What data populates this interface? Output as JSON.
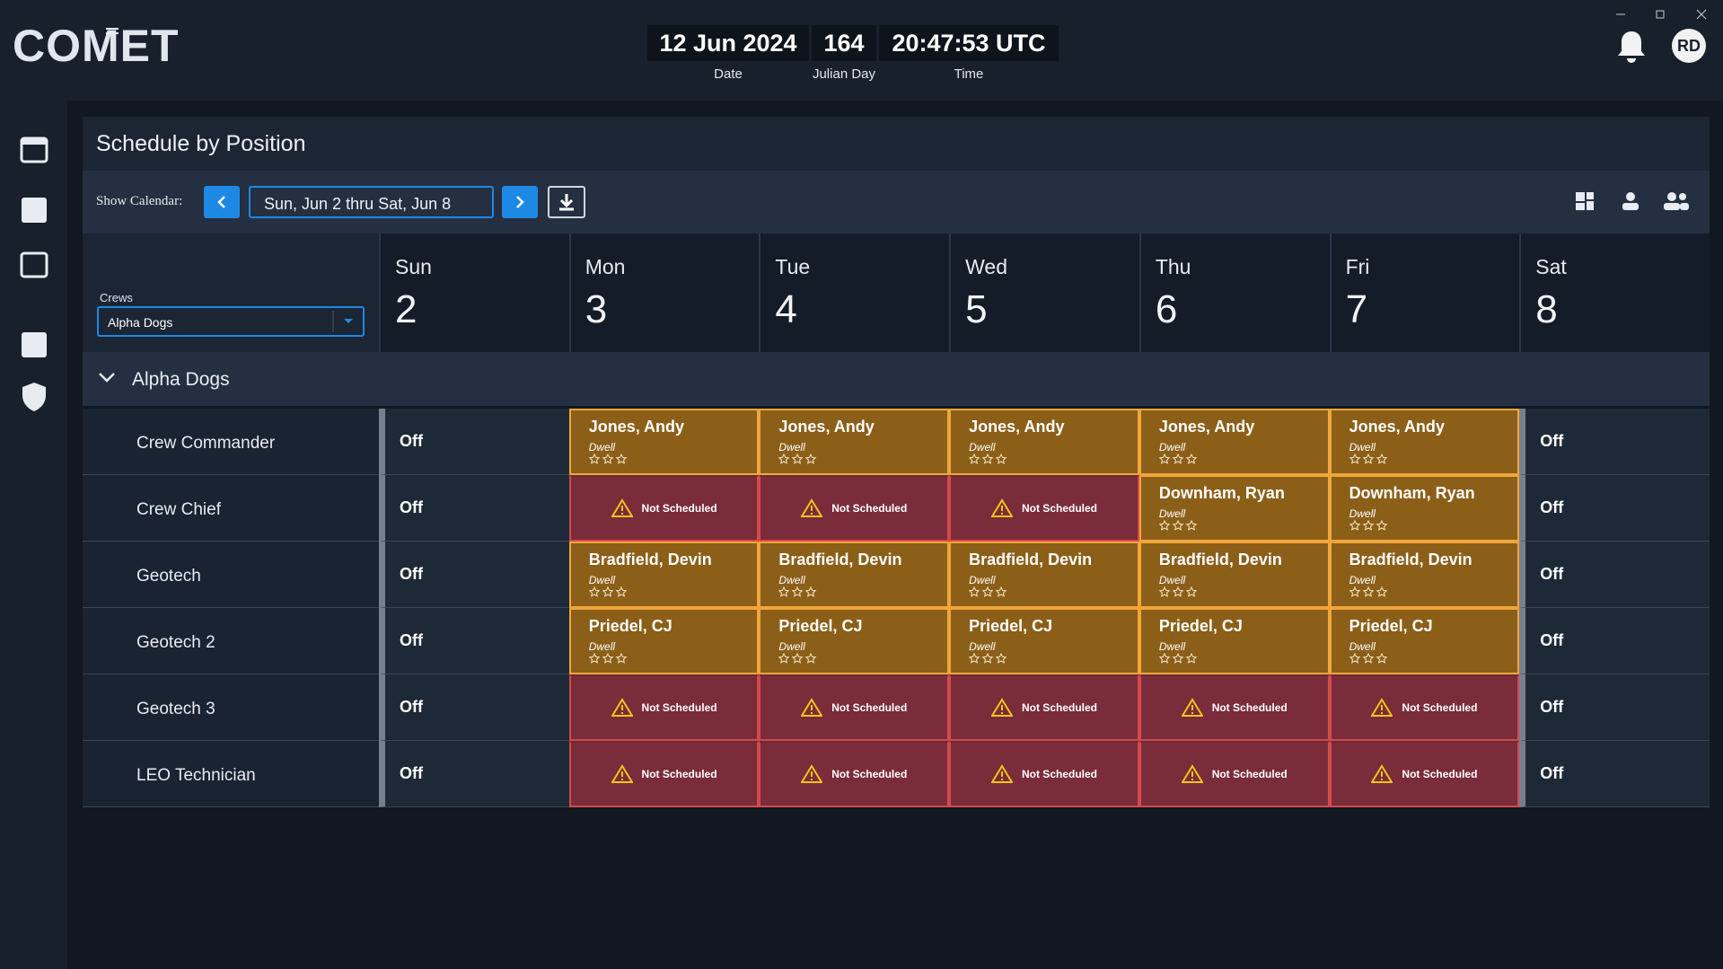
{
  "header": {
    "logo": "COMET",
    "date": "12 Jun 2024",
    "date_label": "Date",
    "julian_day": "164",
    "julian_label": "Julian Day",
    "time": "20:47:53 UTC",
    "time_label": "Time",
    "avatar": "RD"
  },
  "page": {
    "title": "Schedule by Position",
    "show_calendar": "Show Calendar:",
    "range": "Sun, Jun 2 thru Sat, Jun 8",
    "crews_label": "Crews",
    "crew": "Alpha Dogs"
  },
  "days": [
    {
      "name": "Sun",
      "num": "2"
    },
    {
      "name": "Mon",
      "num": "3"
    },
    {
      "name": "Tue",
      "num": "4"
    },
    {
      "name": "Wed",
      "num": "5"
    },
    {
      "name": "Thu",
      "num": "6"
    },
    {
      "name": "Fri",
      "num": "7"
    },
    {
      "name": "Sat",
      "num": "8"
    }
  ],
  "group": "Alpha Dogs",
  "rows": [
    {
      "position": "Crew Commander",
      "cells": [
        {
          "label": "Off"
        },
        {
          "name": "Jones, Andy",
          "note": "Dwell"
        },
        {
          "name": "Jones, Andy",
          "note": "Dwell"
        },
        {
          "name": "Jones, Andy",
          "note": "Dwell"
        },
        {
          "name": "Jones, Andy",
          "note": "Dwell"
        },
        {
          "name": "Jones, Andy",
          "note": "Dwell"
        },
        {
          "label": "Off"
        }
      ]
    },
    {
      "position": "Crew Chief",
      "cells": [
        {
          "label": "Off"
        },
        {
          "alert": "Not Scheduled"
        },
        {
          "alert": "Not Scheduled"
        },
        {
          "alert": "Not Scheduled"
        },
        {
          "name": "Downham, Ryan",
          "note": "Dwell"
        },
        {
          "name": "Downham, Ryan",
          "note": "Dwell"
        },
        {
          "label": "Off"
        }
      ]
    },
    {
      "position": "Geotech",
      "cells": [
        {
          "label": "Off"
        },
        {
          "name": "Bradfield, Devin",
          "note": "Dwell"
        },
        {
          "name": "Bradfield, Devin",
          "note": "Dwell"
        },
        {
          "name": "Bradfield, Devin",
          "note": "Dwell"
        },
        {
          "name": "Bradfield, Devin",
          "note": "Dwell"
        },
        {
          "name": "Bradfield, Devin",
          "note": "Dwell"
        },
        {
          "label": "Off"
        }
      ]
    },
    {
      "position": "Geotech 2",
      "cells": [
        {
          "label": "Off"
        },
        {
          "name": "Priedel, CJ",
          "note": "Dwell"
        },
        {
          "name": "Priedel, CJ",
          "note": "Dwell"
        },
        {
          "name": "Priedel, CJ",
          "note": "Dwell"
        },
        {
          "name": "Priedel, CJ",
          "note": "Dwell"
        },
        {
          "name": "Priedel, CJ",
          "note": "Dwell"
        },
        {
          "label": "Off"
        }
      ]
    },
    {
      "position": "Geotech 3",
      "cells": [
        {
          "label": "Off"
        },
        {
          "alert": "Not Scheduled"
        },
        {
          "alert": "Not Scheduled"
        },
        {
          "alert": "Not Scheduled"
        },
        {
          "alert": "Not Scheduled"
        },
        {
          "alert": "Not Scheduled"
        },
        {
          "label": "Off"
        }
      ]
    },
    {
      "position": "LEO Technician",
      "cells": [
        {
          "label": "Off"
        },
        {
          "alert": "Not Scheduled"
        },
        {
          "alert": "Not Scheduled"
        },
        {
          "alert": "Not Scheduled"
        },
        {
          "alert": "Not Scheduled"
        },
        {
          "alert": "Not Scheduled"
        },
        {
          "label": "Off"
        }
      ]
    }
  ]
}
